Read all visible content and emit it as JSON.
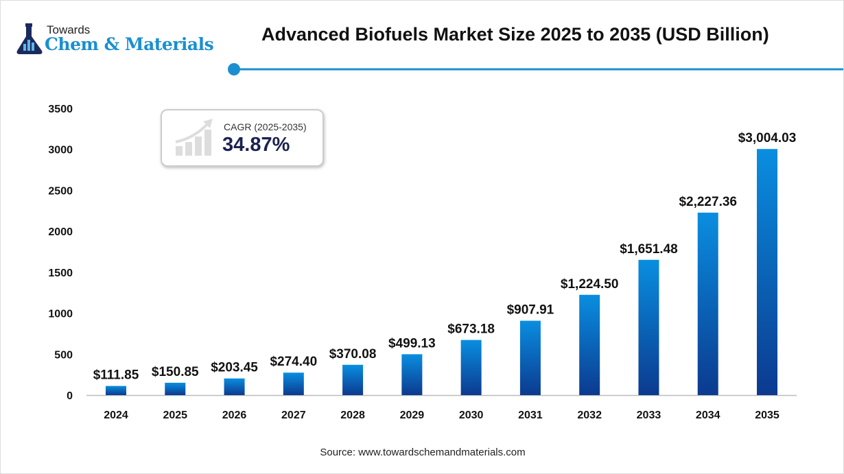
{
  "logo": {
    "line1": "Towards",
    "line2": "Chem & Materials"
  },
  "title": "Advanced Biofuels Market Size 2025 to 2035 (USD Billion)",
  "cagr": {
    "label": "CAGR (2025-2035)",
    "value": "34.87%"
  },
  "source": "Source: www.towardschemandmaterials.com",
  "colors": {
    "bar_top": "#0a8ee0",
    "bar_bottom": "#0b3a8f",
    "accent_line": "#1a8fd0"
  },
  "chart_data": {
    "type": "bar",
    "title": "Advanced Biofuels Market Size 2025 to 2035 (USD Billion)",
    "categories": [
      "2024",
      "2025",
      "2026",
      "2027",
      "2028",
      "2029",
      "2030",
      "2031",
      "2032",
      "2033",
      "2034",
      "2035"
    ],
    "values": [
      111.85,
      150.85,
      203.45,
      274.4,
      370.08,
      499.13,
      673.18,
      907.91,
      1224.5,
      1651.48,
      2227.36,
      3004.03
    ],
    "data_labels": [
      "$111.85",
      "$150.85",
      "$203.45",
      "$274.40",
      "$370.08",
      "$499.13",
      "$673.18",
      "$907.91",
      "$1,224.50",
      "$1,651.48",
      "$2,227.36",
      "$3,004.03"
    ],
    "yticks": [
      "0",
      "500",
      "1000",
      "1500",
      "2000",
      "2500",
      "3000",
      "3500"
    ],
    "ylim": [
      0,
      3500
    ],
    "grid": false,
    "legend": "none"
  }
}
